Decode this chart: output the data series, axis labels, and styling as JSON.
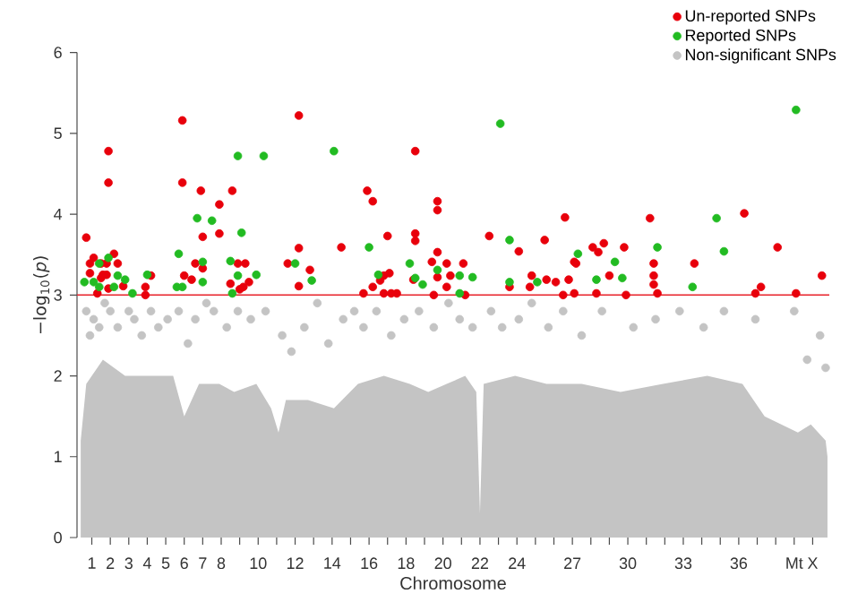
{
  "chart_data": {
    "type": "scatter",
    "xlabel": "Chromosome",
    "ylabel": "−log$_{10}$(*p*)",
    "xlim": [
      0.2,
      40.9
    ],
    "ylim": [
      0,
      6
    ],
    "yticks": [
      0,
      1,
      2,
      3,
      4,
      5,
      6
    ],
    "xticks": [
      1,
      2,
      3,
      4,
      5,
      6,
      7,
      8,
      {
        "value": 9,
        "label": null
      },
      10,
      {
        "value": 11,
        "label": null
      },
      12,
      {
        "value": 13,
        "label": null
      },
      14,
      {
        "value": 15,
        "label": null
      },
      16,
      {
        "value": 17,
        "label": null
      },
      18,
      {
        "value": 19,
        "label": null
      },
      20,
      {
        "value": 21,
        "label": null
      },
      22,
      {
        "value": 23,
        "label": null
      },
      24,
      {
        "value": 25,
        "label": null
      },
      {
        "value": 26,
        "label": null
      },
      27,
      {
        "value": 28,
        "label": null
      },
      {
        "value": 29,
        "label": null
      },
      30,
      {
        "value": 31,
        "label": null
      },
      {
        "value": 32,
        "label": null
      },
      33,
      {
        "value": 34,
        "label": null
      },
      {
        "value": 35,
        "label": null
      },
      36,
      {
        "value": 37,
        "label": null
      },
      {
        "value": 38,
        "label": null
      },
      {
        "value": 39,
        "label": "Mt"
      },
      {
        "value": 40,
        "label": "X"
      }
    ],
    "legend": "top right",
    "ref_lines": [
      {
        "axis": "y",
        "value": 3,
        "color": "#e8222a"
      }
    ],
    "series": [
      {
        "name": "Un-reported SNPs",
        "marker": "circle",
        "color": "#e8000b",
        "x": [
          0.7,
          0.9,
          0.9,
          1.1,
          1.3,
          1.5,
          1.5,
          1.6,
          1.8,
          1.9,
          1.9,
          1.8,
          1.9,
          2.2,
          2.4,
          2.7,
          3.9,
          3.9,
          4.2,
          5.9,
          5.9,
          6.0,
          6.4,
          6.6,
          6.9,
          7.0,
          7.0,
          7.9,
          7.9,
          8.6,
          8.5,
          8.9,
          9.3,
          9.0,
          9.2,
          9.5,
          12.2,
          12.2,
          11.6,
          12.2,
          12.8,
          14.5,
          15.9,
          16.2,
          17.0,
          16.8,
          17.1,
          16.6,
          16.2,
          15.7,
          16.8,
          17.2,
          17.5,
          18.5,
          18.5,
          18.5,
          18.4,
          19.4,
          19.5,
          19.7,
          19.7,
          19.7,
          19.7,
          20.2,
          20.4,
          20.2,
          21.1,
          21.2,
          22.5,
          23.6,
          24.1,
          24.7,
          24.8,
          25.6,
          25.5,
          26.1,
          26.6,
          26.8,
          26.5,
          27.1,
          27.1,
          27.2,
          28.3,
          28.1,
          28.4,
          28.7,
          29.0,
          29.8,
          29.9,
          31.2,
          31.4,
          31.4,
          31.4,
          31.6,
          33.6,
          36.3,
          38.1,
          37.2,
          36.9,
          39.1,
          40.5
        ],
        "values": [
          3.71,
          3.39,
          3.27,
          3.46,
          3.02,
          3.39,
          3.21,
          3.25,
          3.25,
          4.78,
          4.39,
          3.39,
          3.08,
          3.51,
          3.39,
          3.11,
          3.1,
          3.0,
          3.24,
          5.16,
          4.39,
          3.24,
          3.19,
          3.39,
          4.29,
          3.72,
          3.33,
          4.12,
          3.76,
          4.29,
          3.14,
          3.39,
          3.39,
          3.07,
          3.1,
          3.16,
          5.22,
          3.58,
          3.39,
          3.11,
          3.31,
          3.59,
          4.29,
          4.16,
          3.73,
          3.24,
          3.27,
          3.18,
          3.1,
          3.02,
          3.02,
          3.02,
          3.02,
          4.78,
          3.76,
          3.67,
          3.19,
          3.41,
          3.0,
          4.16,
          4.05,
          3.53,
          3.22,
          3.39,
          3.24,
          3.1,
          3.39,
          3.0,
          3.73,
          3.1,
          3.54,
          3.1,
          3.24,
          3.19,
          3.68,
          3.16,
          3.96,
          3.19,
          3.0,
          3.41,
          3.02,
          3.39,
          3.02,
          3.59,
          3.53,
          3.64,
          3.24,
          3.59,
          3.0,
          3.95,
          3.39,
          3.24,
          3.13,
          3.02,
          3.39,
          4.01,
          3.59,
          3.1,
          3.02,
          3.02,
          3.24
        ]
      },
      {
        "name": "Reported SNPs",
        "marker": "circle",
        "color": "#22bb22",
        "x": [
          0.6,
          1.1,
          1.4,
          1.4,
          1.9,
          2.2,
          2.4,
          2.8,
          3.2,
          4.0,
          5.7,
          5.6,
          5.9,
          6.7,
          7.0,
          7.0,
          7.5,
          8.5,
          8.9,
          9.1,
          8.9,
          8.6,
          9.9,
          10.3,
          12.0,
          12.9,
          14.1,
          23.1,
          39.1,
          16.0,
          16.5,
          18.2,
          18.5,
          18.9,
          19.7,
          20.9,
          21.6,
          20.9,
          23.6,
          23.6,
          25.1,
          27.3,
          28.3,
          29.3,
          29.7,
          31.6,
          33.5,
          34.8,
          35.2
        ],
        "values": [
          3.16,
          3.16,
          3.39,
          3.1,
          3.46,
          3.1,
          3.24,
          3.19,
          3.02,
          3.25,
          3.51,
          3.1,
          3.1,
          3.95,
          3.41,
          3.16,
          3.92,
          3.42,
          4.72,
          3.77,
          3.24,
          3.02,
          3.25,
          4.72,
          3.39,
          3.18,
          4.78,
          5.12,
          5.29,
          3.59,
          3.25,
          3.39,
          3.21,
          3.13,
          3.31,
          3.24,
          3.22,
          3.02,
          3.68,
          3.16,
          3.16,
          3.51,
          3.19,
          3.41,
          3.21,
          3.59,
          3.1,
          3.95,
          3.54
        ]
      },
      {
        "name": "Non-significant SNPs",
        "marker": "circle",
        "color": "#c4c4c4",
        "x": [
          0.7,
          0.9,
          1.1,
          1.4,
          1.7,
          2.0,
          2.4,
          3.0,
          3.3,
          3.7,
          4.2,
          4.6,
          5.1,
          5.7,
          6.2,
          6.6,
          7.2,
          7.6,
          8.3,
          8.9,
          9.6,
          10.4,
          11.3,
          11.8,
          12.5,
          13.2,
          13.8,
          14.6,
          15.2,
          15.7,
          16.4,
          17.2,
          17.9,
          18.7,
          19.5,
          20.3,
          20.9,
          21.6,
          22.6,
          23.2,
          24.1,
          24.8,
          25.7,
          26.5,
          27.5,
          28.6,
          30.3,
          31.5,
          32.8,
          34.1,
          35.2,
          36.9,
          39.0,
          39.7,
          40.4,
          40.7
        ],
        "values": [
          2.8,
          2.5,
          2.7,
          2.6,
          2.9,
          2.8,
          2.6,
          2.8,
          2.7,
          2.5,
          2.8,
          2.6,
          2.7,
          2.8,
          2.4,
          2.7,
          2.9,
          2.8,
          2.6,
          2.8,
          2.7,
          2.8,
          2.5,
          2.3,
          2.6,
          2.9,
          2.4,
          2.7,
          2.8,
          2.6,
          2.8,
          2.5,
          2.7,
          2.8,
          2.6,
          2.9,
          2.7,
          2.6,
          2.8,
          2.6,
          2.7,
          2.9,
          2.6,
          2.8,
          2.5,
          2.8,
          2.6,
          2.7,
          2.8,
          2.6,
          2.8,
          2.7,
          2.8,
          2.2,
          2.5,
          2.1
        ]
      },
      {
        "type": "area",
        "marker": "none",
        "color": "#c4c4c4",
        "x": [
          0.4,
          0.7,
          1.6,
          2.8,
          4.1,
          5.4,
          6.0,
          6.8,
          7.9,
          8.7,
          9.9,
          10.7,
          11.1,
          11.5,
          12.7,
          14.1,
          15.4,
          16.8,
          18.2,
          19.2,
          20.2,
          21.2,
          21.8,
          22.0,
          22.2,
          23.9,
          25.6,
          27.5,
          29.6,
          31.9,
          34.3,
          36.2,
          37.4,
          39.2,
          39.9,
          40.7,
          40.8
        ],
        "values": [
          1.2,
          1.9,
          2.2,
          2.0,
          2.0,
          2.0,
          1.5,
          1.9,
          1.9,
          1.8,
          1.9,
          1.6,
          1.3,
          1.7,
          1.7,
          1.6,
          1.9,
          2.0,
          1.9,
          1.8,
          1.9,
          2.0,
          1.8,
          0.3,
          1.9,
          2.0,
          1.9,
          1.9,
          1.8,
          1.9,
          2.0,
          1.9,
          1.5,
          1.3,
          1.4,
          1.2,
          1.0
        ]
      }
    ]
  }
}
